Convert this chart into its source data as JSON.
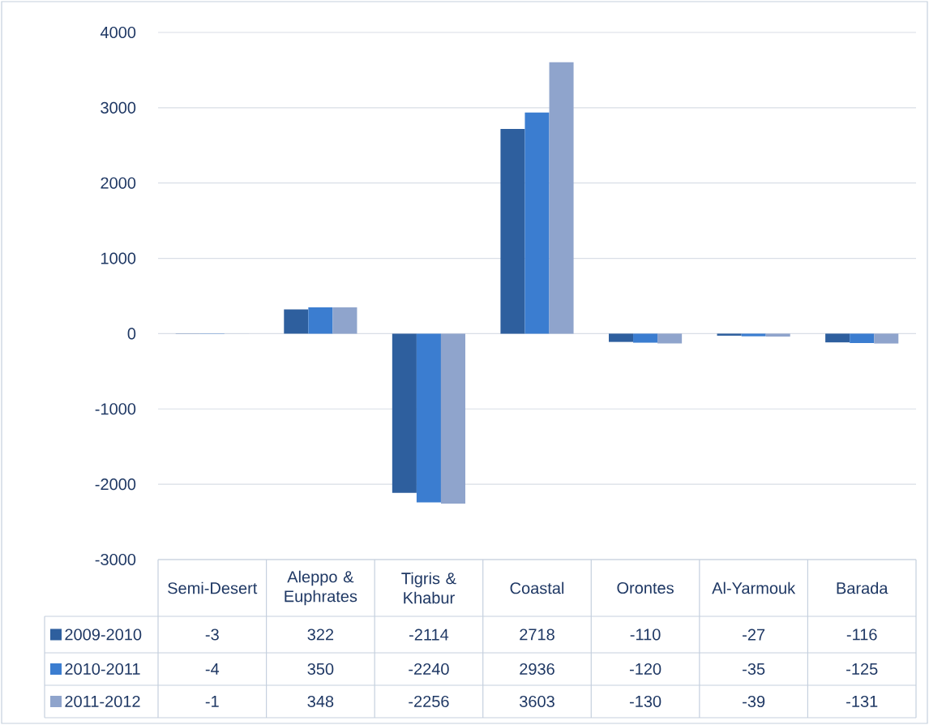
{
  "chart_data": {
    "type": "bar",
    "categories": [
      "Semi-Desert",
      "Aleppo & Euphrates",
      "Tigris & Khabur",
      "Coastal",
      "Orontes",
      "Al-Yarmouk",
      "Barada"
    ],
    "series": [
      {
        "name": "2009-2010",
        "color": "#2e5f9e",
        "values": [
          -3,
          322,
          -2114,
          2718,
          -110,
          -27,
          -116
        ]
      },
      {
        "name": "2010-2011",
        "color": "#3b7dd0",
        "values": [
          -4,
          350,
          -2240,
          2936,
          -120,
          -35,
          -125
        ]
      },
      {
        "name": "2011-2012",
        "color": "#8fa4cc",
        "values": [
          -1,
          348,
          -2256,
          3603,
          -130,
          -39,
          -131
        ]
      }
    ],
    "ylim": [
      -3000,
      4000
    ],
    "yticks": [
      -3000,
      -2000,
      -1000,
      0,
      1000,
      2000,
      3000,
      4000
    ],
    "grid": "y",
    "legend": "bottom",
    "data_labels": true
  }
}
